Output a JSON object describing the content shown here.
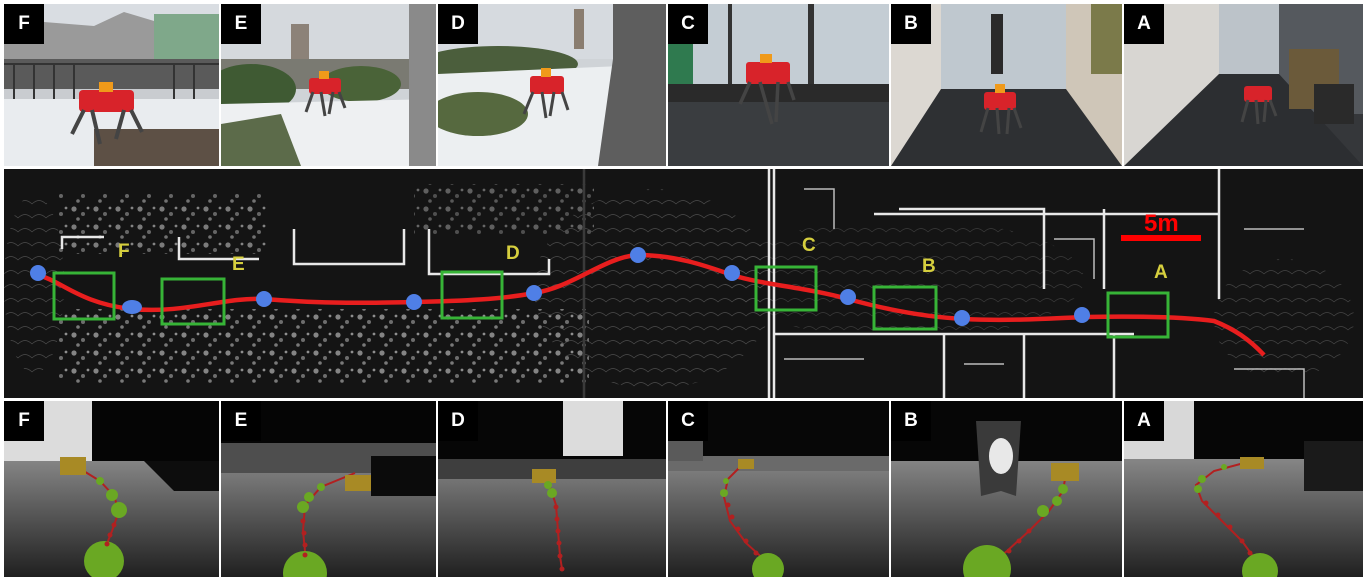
{
  "top_row": [
    {
      "label": "F"
    },
    {
      "label": "E"
    },
    {
      "label": "D"
    },
    {
      "label": "C"
    },
    {
      "label": "B"
    },
    {
      "label": "A"
    }
  ],
  "bottom_row": [
    {
      "label": "F"
    },
    {
      "label": "E"
    },
    {
      "label": "D"
    },
    {
      "label": "C"
    },
    {
      "label": "B"
    },
    {
      "label": "A"
    }
  ],
  "map": {
    "scale_label": "5m",
    "box_labels": [
      "F",
      "E",
      "D",
      "C",
      "B",
      "A"
    ],
    "colors": {
      "path": "#e81e1e",
      "waypoint": "#4f7fe6",
      "box": "#37b437",
      "label": "#d6cf3e",
      "scale": "#ff0000"
    }
  }
}
